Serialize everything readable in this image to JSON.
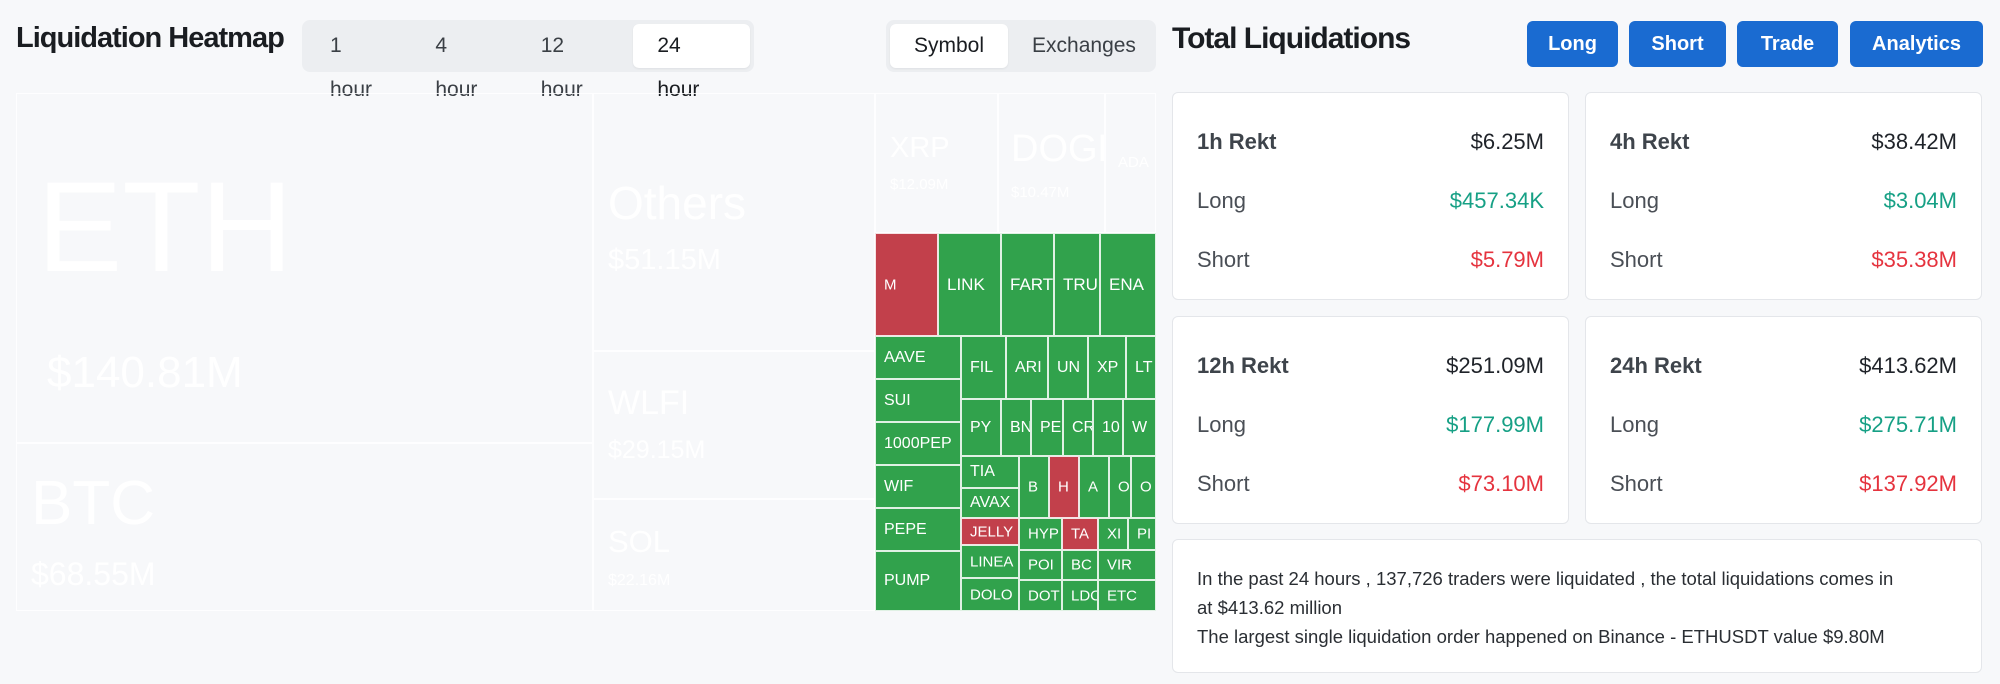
{
  "heatmap": {
    "title": "Liquidation Heatmap",
    "time_options": [
      "1 hour",
      "4 hour",
      "12 hour",
      "24 hour"
    ],
    "active_time": "24 hour",
    "view_options": [
      "Symbol",
      "Exchanges"
    ],
    "active_view": "Symbol",
    "tiles": [
      {
        "symbol": "ETH",
        "value": "$140.81M",
        "color": "#34c85a"
      },
      {
        "symbol": "BTC",
        "value": "$68.55M",
        "color": "#c2404b"
      },
      {
        "symbol": "Others",
        "value": "$51.15M",
        "color": "#31a24c"
      },
      {
        "symbol": "WLFI",
        "value": "$29.15M",
        "color": "#31a24c"
      },
      {
        "symbol": "SOL",
        "value": "$22.16M",
        "color": "#31a24c"
      },
      {
        "symbol": "XRP",
        "value": "$12.09M",
        "color": "#31a24c"
      },
      {
        "symbol": "DOGE",
        "value": "$10.47M",
        "color": "#31a24c"
      },
      {
        "symbol": "ADA",
        "value": "",
        "color": "#31a24c"
      },
      {
        "symbol": "M",
        "value": "",
        "color": "#c2404b"
      },
      {
        "symbol": "LINK",
        "value": "",
        "color": "#31a24c"
      },
      {
        "symbol": "FART",
        "value": "",
        "color": "#31a24c"
      },
      {
        "symbol": "TRUN",
        "value": "",
        "color": "#31a24c"
      },
      {
        "symbol": "ENA",
        "value": "",
        "color": "#31a24c"
      },
      {
        "symbol": "AAVE",
        "value": "",
        "color": "#31a24c"
      },
      {
        "symbol": "SUI",
        "value": "",
        "color": "#31a24c"
      },
      {
        "symbol": "1000PEP",
        "value": "",
        "color": "#31a24c"
      },
      {
        "symbol": "WIF",
        "value": "",
        "color": "#31a24c"
      },
      {
        "symbol": "PEPE",
        "value": "",
        "color": "#31a24c"
      },
      {
        "symbol": "PUMP",
        "value": "",
        "color": "#31a24c"
      },
      {
        "symbol": "FIL",
        "value": "",
        "color": "#31a24c"
      },
      {
        "symbol": "ARI",
        "value": "",
        "color": "#31a24c"
      },
      {
        "symbol": "UN",
        "value": "",
        "color": "#31a24c"
      },
      {
        "symbol": "XP",
        "value": "",
        "color": "#31a24c"
      },
      {
        "symbol": "LT",
        "value": "",
        "color": "#31a24c"
      },
      {
        "symbol": "PY",
        "value": "",
        "color": "#31a24c"
      },
      {
        "symbol": "BN",
        "value": "",
        "color": "#31a24c"
      },
      {
        "symbol": "PE",
        "value": "",
        "color": "#31a24c"
      },
      {
        "symbol": "CR",
        "value": "",
        "color": "#31a24c"
      },
      {
        "symbol": "10",
        "value": "",
        "color": "#31a24c"
      },
      {
        "symbol": "W",
        "value": "",
        "color": "#31a24c"
      },
      {
        "symbol": "TIA",
        "value": "",
        "color": "#31a24c"
      },
      {
        "symbol": "AVAX",
        "value": "",
        "color": "#31a24c"
      },
      {
        "symbol": "JELLY",
        "value": "",
        "color": "#c2404b"
      },
      {
        "symbol": "LINEA",
        "value": "",
        "color": "#31a24c"
      },
      {
        "symbol": "DOLO",
        "value": "",
        "color": "#31a24c"
      },
      {
        "symbol": "B",
        "value": "",
        "color": "#31a24c"
      },
      {
        "symbol": "H",
        "value": "",
        "color": "#c2404b"
      },
      {
        "symbol": "A",
        "value": "",
        "color": "#31a24c"
      },
      {
        "symbol": "O",
        "value": "",
        "color": "#31a24c"
      },
      {
        "symbol": "O",
        "value": "",
        "color": "#31a24c"
      },
      {
        "symbol": "HYP",
        "value": "",
        "color": "#31a24c"
      },
      {
        "symbol": "TA",
        "value": "",
        "color": "#c2404b"
      },
      {
        "symbol": "XI",
        "value": "",
        "color": "#31a24c"
      },
      {
        "symbol": "PI",
        "value": "",
        "color": "#31a24c"
      },
      {
        "symbol": "POI",
        "value": "",
        "color": "#31a24c"
      },
      {
        "symbol": "BC",
        "value": "",
        "color": "#31a24c"
      },
      {
        "symbol": "VIR",
        "value": "",
        "color": "#31a24c"
      },
      {
        "symbol": "DOT",
        "value": "",
        "color": "#31a24c"
      },
      {
        "symbol": "LDC",
        "value": "",
        "color": "#31a24c"
      },
      {
        "symbol": "ETC",
        "value": "",
        "color": "#31a24c"
      }
    ]
  },
  "liquidations": {
    "title": "Total Liquidations",
    "buttons": [
      "Long",
      "Short",
      "Trade",
      "Analytics"
    ],
    "cards": [
      {
        "period": "1h Rekt",
        "total": "$6.25M",
        "long_label": "Long",
        "long": "$457.34K",
        "short_label": "Short",
        "short": "$5.79M"
      },
      {
        "period": "4h Rekt",
        "total": "$38.42M",
        "long_label": "Long",
        "long": "$3.04M",
        "short_label": "Short",
        "short": "$35.38M"
      },
      {
        "period": "12h Rekt",
        "total": "$251.09M",
        "long_label": "Long",
        "long": "$177.99M",
        "short_label": "Short",
        "short": "$73.10M"
      },
      {
        "period": "24h Rekt",
        "total": "$413.62M",
        "long_label": "Long",
        "long": "$275.71M",
        "short_label": "Short",
        "short": "$137.92M"
      }
    ],
    "summary_line1": "In the past 24 hours , 137,726 traders were liquidated , the total liquidations comes in",
    "summary_line2": "at $413.62 million",
    "summary_line3": "The largest single liquidation order happened on Binance - ETHUSDT value $9.80M"
  },
  "colors": {
    "up_strong": "#34c85a",
    "up": "#31a24c",
    "down": "#c2404b",
    "long_text": "#16a085",
    "short_text": "#e5333e",
    "button": "#1a6bd1"
  }
}
